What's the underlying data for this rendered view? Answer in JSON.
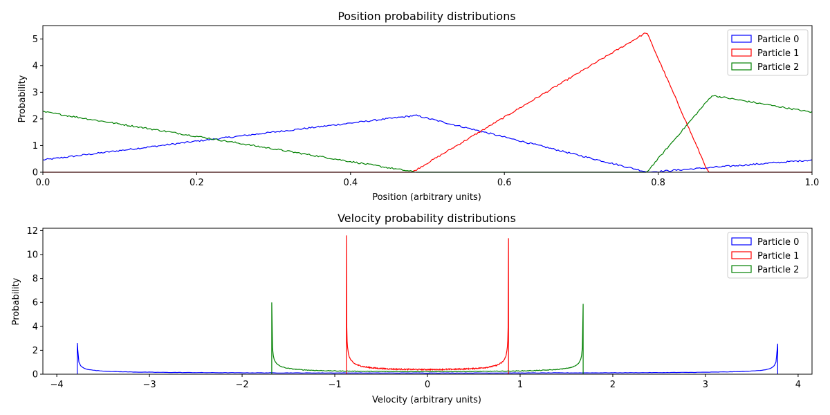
{
  "chart_data": [
    {
      "type": "line",
      "title": "Position probability distributions",
      "xlabel": "Position (arbitrary units)",
      "ylabel": "Probability",
      "xlim": [
        0,
        1
      ],
      "ylim": [
        0,
        5.5
      ],
      "xticks": [
        "0.0",
        "0.2",
        "0.4",
        "0.6",
        "0.8",
        "1.0"
      ],
      "xtick_values": [
        0,
        0.2,
        0.4,
        0.6,
        0.8,
        1.0
      ],
      "yticks": [
        "0",
        "1",
        "2",
        "3",
        "4",
        "5"
      ],
      "ytick_values": [
        0,
        1,
        2,
        3,
        4,
        5
      ],
      "legend_position": "top-right",
      "series": [
        {
          "name": "Particle 0",
          "color": "#0000ff",
          "x": [
            0,
            0.21,
            0.485,
            0.787,
            1.0
          ],
          "y": [
            0.46,
            1.2,
            2.13,
            0,
            0.46
          ]
        },
        {
          "name": "Particle 1",
          "color": "#ff0000",
          "x": [
            0,
            0.48,
            0.785,
            0.865,
            1.0
          ],
          "y": [
            0,
            0,
            5.25,
            0,
            0
          ]
        },
        {
          "name": "Particle 2",
          "color": "#008000",
          "x": [
            0,
            0.21,
            0.485,
            0.785,
            0.87,
            1.0
          ],
          "y": [
            2.27,
            1.3,
            0,
            0,
            2.88,
            2.25
          ]
        }
      ]
    },
    {
      "type": "line",
      "title": "Velocity probability distributions",
      "xlabel": "Velocity (arbitrary units)",
      "ylabel": "Probability",
      "xlim": [
        -4.15,
        4.15
      ],
      "ylim": [
        0,
        12.2
      ],
      "xticks": [
        "−4",
        "−3",
        "−2",
        "−1",
        "0",
        "1",
        "2",
        "3",
        "4"
      ],
      "xtick_values": [
        -4,
        -3,
        -2,
        -1,
        0,
        1,
        2,
        3,
        4
      ],
      "yticks": [
        "0",
        "2",
        "4",
        "6",
        "8",
        "10",
        "12"
      ],
      "ytick_values": [
        0,
        2,
        4,
        6,
        8,
        10,
        12
      ],
      "legend_position": "top-right",
      "series": [
        {
          "name": "Particle 0",
          "color": "#0000ff",
          "vmax": 3.78,
          "peak": 2.6,
          "floor": 0.1
        },
        {
          "name": "Particle 1",
          "color": "#ff0000",
          "vmax": 0.875,
          "peak": 11.6,
          "floor": 0.39
        },
        {
          "name": "Particle 2",
          "color": "#008000",
          "vmax": 1.68,
          "peak": 6.0,
          "floor": 0.22
        }
      ]
    }
  ]
}
